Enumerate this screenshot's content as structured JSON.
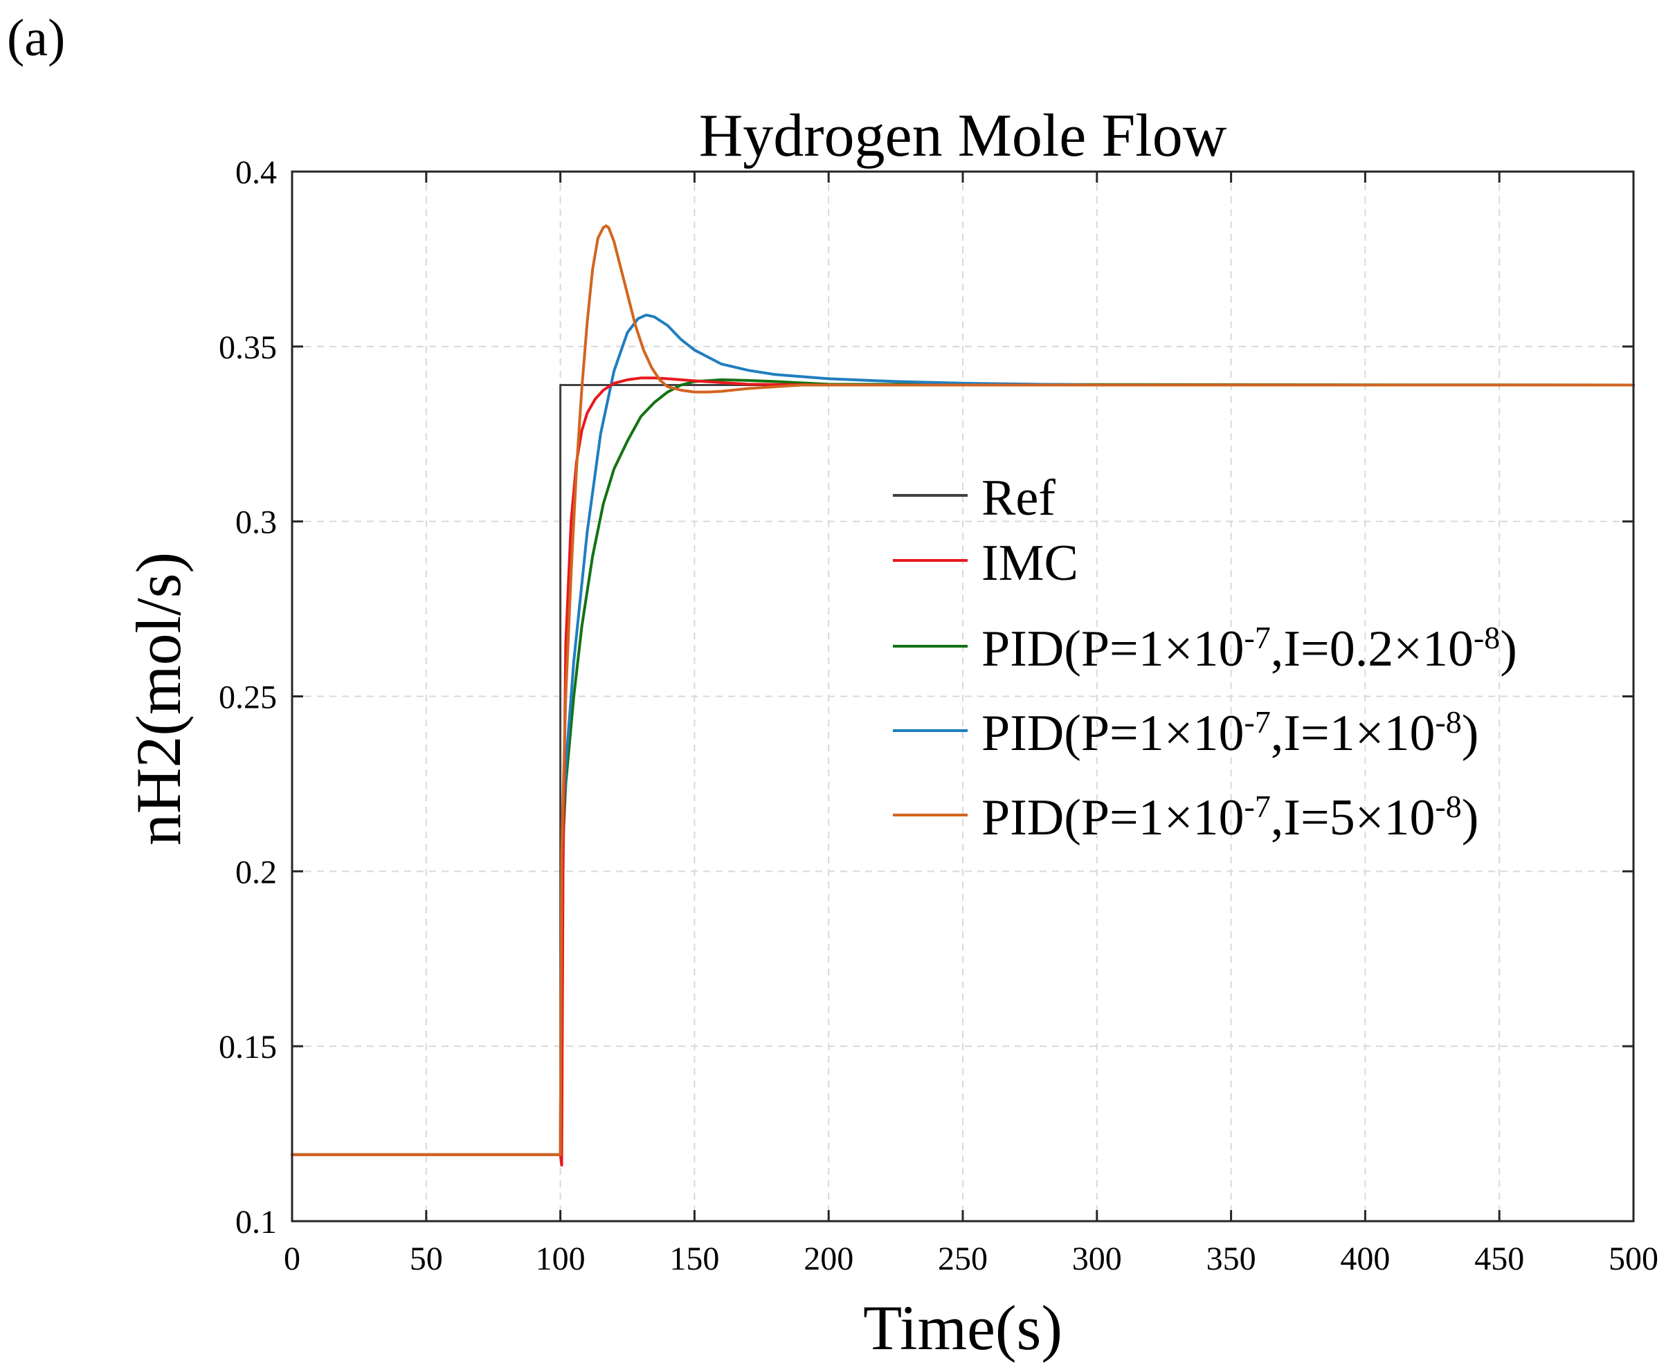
{
  "panel_label": "(a)",
  "chart_data": {
    "type": "line",
    "title": "Hydrogen Mole Flow",
    "xlabel": "Time(s)",
    "ylabel": "nH2(mol/s)",
    "xlim": [
      0,
      500
    ],
    "ylim": [
      0.1,
      0.4
    ],
    "xticks": [
      0,
      50,
      100,
      150,
      200,
      250,
      300,
      350,
      400,
      450,
      500
    ],
    "yticks": [
      0.1,
      0.15,
      0.2,
      0.25,
      0.3,
      0.35,
      0.4
    ],
    "xtick_labels": [
      "0",
      "50",
      "100",
      "150",
      "200",
      "250",
      "300",
      "350",
      "400",
      "450",
      "500"
    ],
    "ytick_labels": [
      "0.1",
      "0.15",
      "0.2",
      "0.25",
      "0.3",
      "0.35",
      "0.4"
    ],
    "grid": true,
    "legend_position": "center-right",
    "series": [
      {
        "name": "Ref",
        "legend": {
          "main": "Ref",
          "sup1": "",
          "mid": "",
          "sup2": "",
          "end": ""
        },
        "color": "#404040",
        "x": [
          0,
          100,
          100,
          500
        ],
        "y": [
          0.119,
          0.119,
          0.339,
          0.339
        ]
      },
      {
        "name": "IMC",
        "legend": {
          "main": "IMC",
          "sup1": "",
          "mid": "",
          "sup2": "",
          "end": ""
        },
        "color": "#e8191e",
        "x": [
          0,
          100,
          100.5,
          101,
          102,
          104,
          106,
          108,
          110,
          113,
          116,
          120,
          125,
          130,
          135,
          140,
          150,
          160,
          170,
          200,
          500
        ],
        "y": [
          0.119,
          0.119,
          0.116,
          0.2,
          0.265,
          0.3,
          0.317,
          0.326,
          0.331,
          0.335,
          0.3375,
          0.3395,
          0.3405,
          0.341,
          0.341,
          0.3408,
          0.3402,
          0.3397,
          0.3392,
          0.339,
          0.339
        ]
      },
      {
        "name": "PID(P=1×10-7,I=0.2×10-8)",
        "legend": {
          "main": "PID(P=1×10",
          "sup1": "-7",
          "mid": ",I=0.2×10",
          "sup2": "-8",
          "end": ")"
        },
        "color": "#137313",
        "x": [
          0,
          100,
          100.5,
          102,
          105,
          108,
          112,
          116,
          120,
          125,
          130,
          135,
          140,
          145,
          150,
          160,
          170,
          180,
          200,
          500
        ],
        "y": [
          0.119,
          0.119,
          0.2,
          0.225,
          0.25,
          0.27,
          0.29,
          0.305,
          0.315,
          0.323,
          0.33,
          0.334,
          0.337,
          0.339,
          0.34,
          0.3405,
          0.3403,
          0.34,
          0.3392,
          0.339
        ]
      },
      {
        "name": "PID(P=1×10-7,I=1×10-8)",
        "legend": {
          "main": "PID(P=1×10",
          "sup1": "-7",
          "mid": ",I=1×10",
          "sup2": "-8",
          "end": ")"
        },
        "color": "#1f7ec0",
        "x": [
          0,
          100,
          100.5,
          102,
          105,
          110,
          115,
          120,
          125,
          129,
          132,
          135,
          140,
          145,
          150,
          160,
          170,
          180,
          200,
          225,
          250,
          300,
          500
        ],
        "y": [
          0.119,
          0.119,
          0.205,
          0.23,
          0.26,
          0.297,
          0.325,
          0.343,
          0.354,
          0.358,
          0.359,
          0.3585,
          0.356,
          0.352,
          0.349,
          0.345,
          0.3432,
          0.342,
          0.3408,
          0.34,
          0.3395,
          0.339,
          0.339
        ]
      },
      {
        "name": "PID(P=1×10-7,I=5×10-8)",
        "legend": {
          "main": "PID(P=1×10",
          "sup1": "-7",
          "mid": ",I=5×10",
          "sup2": "-8",
          "end": ")"
        },
        "color": "#d2651f",
        "x": [
          0,
          100,
          100.5,
          102,
          104,
          106,
          108,
          110,
          112,
          114,
          116,
          117,
          118,
          120,
          122,
          125,
          128,
          131,
          134,
          137,
          140,
          145,
          150,
          155,
          160,
          170,
          180,
          190,
          200,
          500
        ],
        "y": [
          0.119,
          0.119,
          0.205,
          0.25,
          0.285,
          0.315,
          0.338,
          0.357,
          0.372,
          0.381,
          0.384,
          0.3845,
          0.384,
          0.38,
          0.374,
          0.365,
          0.356,
          0.349,
          0.344,
          0.3405,
          0.3385,
          0.3375,
          0.337,
          0.337,
          0.3372,
          0.338,
          0.3385,
          0.339,
          0.339,
          0.339
        ]
      }
    ]
  }
}
